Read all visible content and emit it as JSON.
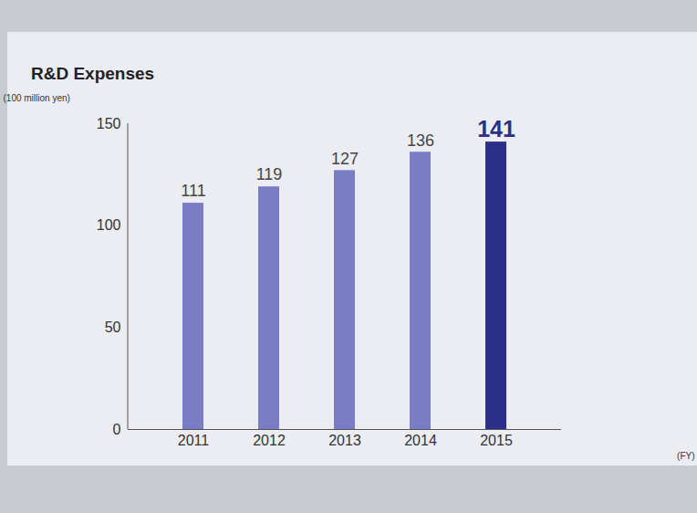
{
  "chart_data": {
    "type": "bar",
    "title": "R&D Expenses",
    "y_label": "(100 million yen)",
    "x_label": "(FY)",
    "categories": [
      "2011",
      "2012",
      "2013",
      "2014",
      "2015"
    ],
    "values": [
      111,
      119,
      127,
      136,
      141
    ],
    "colors": [
      "#7a7dc3",
      "#7a7dc3",
      "#7a7dc3",
      "#7a7dc3",
      "#2b2f87"
    ],
    "ylim": [
      0,
      150
    ],
    "yticks": [
      0,
      50,
      100,
      150
    ],
    "grid": false,
    "data_labels": true
  }
}
